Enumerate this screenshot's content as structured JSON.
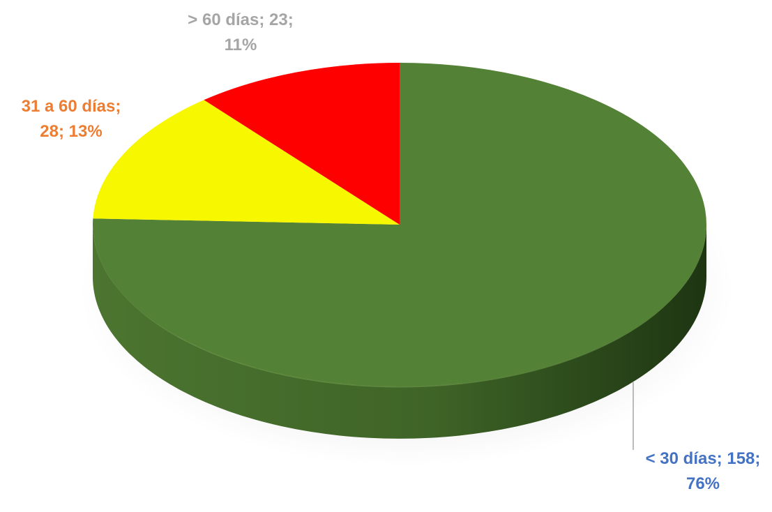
{
  "chart_data": {
    "type": "pie",
    "style": "3d",
    "start": "12 o'clock",
    "direction": "clockwise",
    "slices": [
      {
        "label": "< 30 días",
        "value": 158,
        "percent": 76,
        "color": "#538135",
        "label_color": "#4472C4",
        "label_lines": [
          "< 30 días;  158;",
          "76%"
        ]
      },
      {
        "label": "31 a 60 días",
        "value": 28,
        "percent": 13,
        "color": "#F7F700",
        "label_color": "#ED7D31",
        "label_lines": [
          "31 a 60 días;",
          "28; 13%"
        ]
      },
      {
        "label": "> 60 días",
        "value": 23,
        "percent": 11,
        "color": "#FF0000",
        "label_color": "#A5A5A5",
        "label_lines": [
          "> 60 días;  23;",
          "11%"
        ]
      }
    ],
    "legend": "none"
  }
}
